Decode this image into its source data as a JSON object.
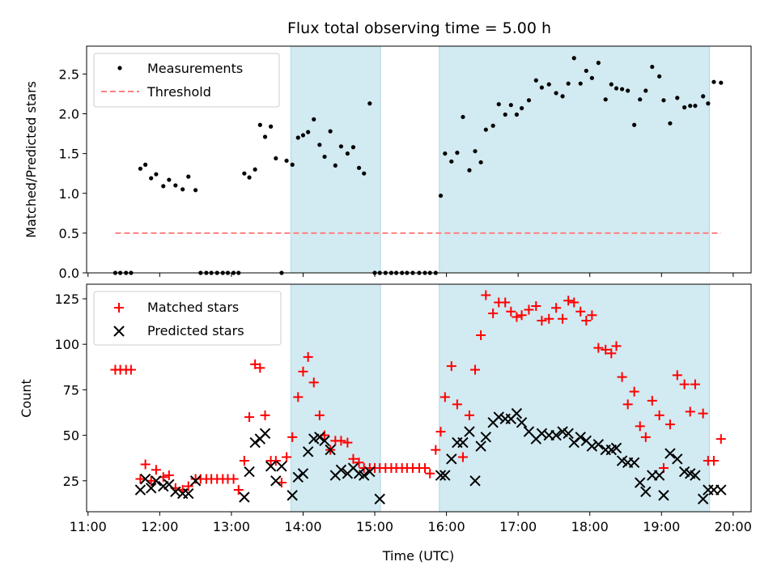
{
  "chart_data": [
    {
      "panel": "top",
      "type": "scatter",
      "title": "Flux total observing time = 5.00 h",
      "ylabel": "Matched/Predicted stars",
      "xlabel": "",
      "xlim": [
        10.98,
        20.25
      ],
      "ylim": [
        0,
        2.85
      ],
      "yticks": [
        0.0,
        0.5,
        1.0,
        1.5,
        2.0,
        2.5
      ],
      "ytick_labels": [
        "0.0",
        "0.5",
        "1.0",
        "1.5",
        "2.0",
        "2.5"
      ],
      "shaded_intervals": [
        [
          13.83,
          15.08
        ],
        [
          15.9,
          19.67
        ]
      ],
      "shade_color": "#add8e6",
      "legend_position": "upper-left",
      "series": [
        {
          "name": "Measurements",
          "kind": "dots",
          "color": "#000000",
          "x": [
            11.38,
            11.45,
            11.53,
            11.6,
            11.73,
            11.8,
            11.88,
            11.95,
            12.05,
            12.13,
            12.22,
            12.32,
            12.4,
            12.5,
            12.57,
            12.65,
            12.72,
            12.8,
            12.88,
            12.95,
            13.03,
            13.1,
            13.18,
            13.25,
            13.33,
            13.4,
            13.47,
            13.55,
            13.62,
            13.7,
            13.77,
            13.85,
            13.93,
            14.0,
            14.07,
            14.15,
            14.23,
            14.3,
            14.38,
            14.45,
            14.53,
            14.62,
            14.7,
            14.78,
            14.85,
            14.93,
            15.0,
            15.07,
            15.15,
            15.23,
            15.3,
            15.38,
            15.45,
            15.53,
            15.62,
            15.7,
            15.77,
            15.85,
            15.92,
            15.98,
            16.07,
            16.15,
            16.23,
            16.32,
            16.4,
            16.48,
            16.55,
            16.65,
            16.73,
            16.82,
            16.9,
            16.98,
            17.05,
            17.15,
            17.25,
            17.33,
            17.43,
            17.53,
            17.62,
            17.7,
            17.78,
            17.87,
            17.95,
            18.03,
            18.12,
            18.22,
            18.3,
            18.37,
            18.45,
            18.53,
            18.62,
            18.7,
            18.78,
            18.87,
            18.97,
            19.03,
            19.12,
            19.22,
            19.32,
            19.4,
            19.47,
            19.58,
            19.65,
            19.73,
            19.83
          ],
          "y": [
            0.0,
            0.0,
            0.0,
            0.0,
            1.31,
            1.36,
            1.19,
            1.24,
            1.09,
            1.17,
            1.1,
            1.05,
            1.21,
            1.04,
            0.0,
            0.0,
            0.0,
            0.0,
            0.0,
            0.0,
            0.0,
            0.0,
            1.25,
            1.2,
            1.3,
            1.86,
            1.71,
            1.84,
            1.44,
            0.0,
            1.41,
            1.36,
            1.7,
            1.73,
            1.77,
            1.93,
            1.61,
            1.46,
            1.78,
            1.35,
            1.59,
            1.5,
            1.58,
            1.32,
            1.25,
            2.13,
            0.0,
            0.0,
            0.0,
            0.0,
            0.0,
            0.0,
            0.0,
            0.0,
            0.0,
            0.0,
            0.0,
            0.0,
            0.97,
            1.5,
            1.4,
            1.51,
            1.96,
            1.29,
            1.53,
            1.39,
            1.8,
            1.85,
            2.12,
            1.99,
            2.11,
            1.99,
            2.07,
            2.17,
            2.42,
            2.33,
            2.37,
            2.26,
            2.22,
            2.38,
            2.7,
            2.38,
            2.54,
            2.45,
            2.64,
            2.18,
            2.37,
            2.32,
            2.31,
            2.29,
            1.86,
            2.18,
            2.29,
            2.59,
            2.47,
            2.17,
            1.88,
            2.2,
            2.08,
            2.1,
            2.1,
            2.22,
            2.13,
            2.4,
            2.39
          ]
        },
        {
          "name": "Threshold",
          "kind": "dashed-line",
          "color": "#ff8080",
          "x": [
            11.38,
            19.83
          ],
          "y": [
            0.5,
            0.5
          ]
        }
      ]
    },
    {
      "panel": "bottom",
      "type": "scatter",
      "title": "",
      "ylabel": "Count",
      "xlabel": "Time (UTC)",
      "xlim": [
        10.98,
        20.25
      ],
      "ylim": [
        8,
        133
      ],
      "yticks": [
        25,
        50,
        75,
        100,
        125
      ],
      "ytick_labels": [
        "25",
        "50",
        "75",
        "100",
        "125"
      ],
      "xticks": [
        11,
        12,
        13,
        14,
        15,
        16,
        17,
        18,
        19,
        20
      ],
      "xtick_labels": [
        "11:00",
        "12:00",
        "13:00",
        "14:00",
        "15:00",
        "16:00",
        "17:00",
        "18:00",
        "19:00",
        "20:00"
      ],
      "shaded_intervals": [
        [
          13.83,
          15.08
        ],
        [
          15.9,
          19.67
        ]
      ],
      "shade_color": "#add8e6",
      "legend_position": "upper-left",
      "series": [
        {
          "name": "Matched stars",
          "kind": "plus",
          "color": "#ff0000",
          "x": [
            11.38,
            11.45,
            11.53,
            11.6,
            11.73,
            11.8,
            11.88,
            11.95,
            12.05,
            12.13,
            12.22,
            12.32,
            12.4,
            12.5,
            12.57,
            12.65,
            12.72,
            12.8,
            12.88,
            12.95,
            13.03,
            13.1,
            13.18,
            13.25,
            13.33,
            13.4,
            13.47,
            13.55,
            13.62,
            13.7,
            13.77,
            13.85,
            13.93,
            14.0,
            14.07,
            14.15,
            14.23,
            14.3,
            14.38,
            14.45,
            14.53,
            14.62,
            14.7,
            14.78,
            14.85,
            14.93,
            15.0,
            15.07,
            15.15,
            15.23,
            15.3,
            15.38,
            15.45,
            15.53,
            15.62,
            15.7,
            15.77,
            15.85,
            15.92,
            15.98,
            16.07,
            16.15,
            16.23,
            16.32,
            16.4,
            16.48,
            16.55,
            16.65,
            16.73,
            16.82,
            16.9,
            16.98,
            17.05,
            17.15,
            17.25,
            17.33,
            17.43,
            17.53,
            17.62,
            17.7,
            17.78,
            17.87,
            17.95,
            18.03,
            18.12,
            18.22,
            18.3,
            18.37,
            18.45,
            18.53,
            18.62,
            18.7,
            18.78,
            18.87,
            18.97,
            19.03,
            19.12,
            19.22,
            19.32,
            19.4,
            19.47,
            19.58,
            19.65,
            19.73,
            19.83
          ],
          "y": [
            86,
            86,
            86,
            86,
            26,
            34,
            25,
            31,
            27,
            28,
            21,
            20,
            22,
            26,
            26,
            26,
            26,
            26,
            26,
            26,
            26,
            20,
            36,
            60,
            89,
            87,
            61,
            36,
            36,
            24,
            38,
            49,
            71,
            85,
            93,
            79,
            61,
            50,
            42,
            47,
            47,
            46,
            37,
            35,
            32,
            32,
            32,
            32,
            32,
            32,
            32,
            32,
            32,
            32,
            32,
            32,
            29,
            42,
            52,
            71,
            88,
            67,
            38,
            61,
            86,
            105,
            127,
            117,
            123,
            123,
            118,
            115,
            116,
            119,
            121,
            113,
            114,
            120,
            114,
            124,
            123,
            118,
            113,
            116,
            98,
            97,
            95,
            99,
            82,
            67,
            74,
            55,
            49,
            69,
            61,
            32,
            56,
            83,
            78,
            63,
            78,
            62,
            36,
            36,
            48
          ]
        },
        {
          "name": "Predicted stars",
          "kind": "cross",
          "color": "#000000",
          "x": [
            11.73,
            11.8,
            11.88,
            11.95,
            12.05,
            12.13,
            12.22,
            12.32,
            12.4,
            12.5,
            13.18,
            13.25,
            13.33,
            13.4,
            13.47,
            13.55,
            13.62,
            13.7,
            13.85,
            13.93,
            14.0,
            14.07,
            14.15,
            14.23,
            14.3,
            14.38,
            14.45,
            14.53,
            14.62,
            14.7,
            14.78,
            14.85,
            14.93,
            15.07,
            15.92,
            15.98,
            16.07,
            16.15,
            16.23,
            16.32,
            16.4,
            16.48,
            16.55,
            16.65,
            16.73,
            16.82,
            16.9,
            16.98,
            17.05,
            17.15,
            17.25,
            17.33,
            17.43,
            17.53,
            17.62,
            17.7,
            17.78,
            17.87,
            17.95,
            18.03,
            18.12,
            18.22,
            18.3,
            18.37,
            18.45,
            18.53,
            18.62,
            18.7,
            18.78,
            18.87,
            18.97,
            19.03,
            19.12,
            19.22,
            19.32,
            19.4,
            19.47,
            19.58,
            19.65,
            19.73,
            19.83
          ],
          "y": [
            20,
            26,
            21,
            25,
            22,
            23,
            19,
            18,
            18,
            25,
            16,
            30,
            46,
            48,
            51,
            33,
            25,
            33,
            17,
            27,
            29,
            41,
            48,
            49,
            47,
            42,
            28,
            31,
            29,
            32,
            29,
            28,
            30,
            15,
            28,
            28,
            37,
            46,
            46,
            52,
            25,
            44,
            49,
            57,
            60,
            59,
            59,
            62,
            57,
            52,
            48,
            51,
            50,
            50,
            52,
            51,
            46,
            49,
            47,
            44,
            45,
            42,
            42,
            43,
            36,
            35,
            35,
            24,
            19,
            28,
            28,
            17,
            40,
            37,
            30,
            29,
            28,
            15,
            20,
            20,
            20
          ]
        }
      ]
    }
  ]
}
